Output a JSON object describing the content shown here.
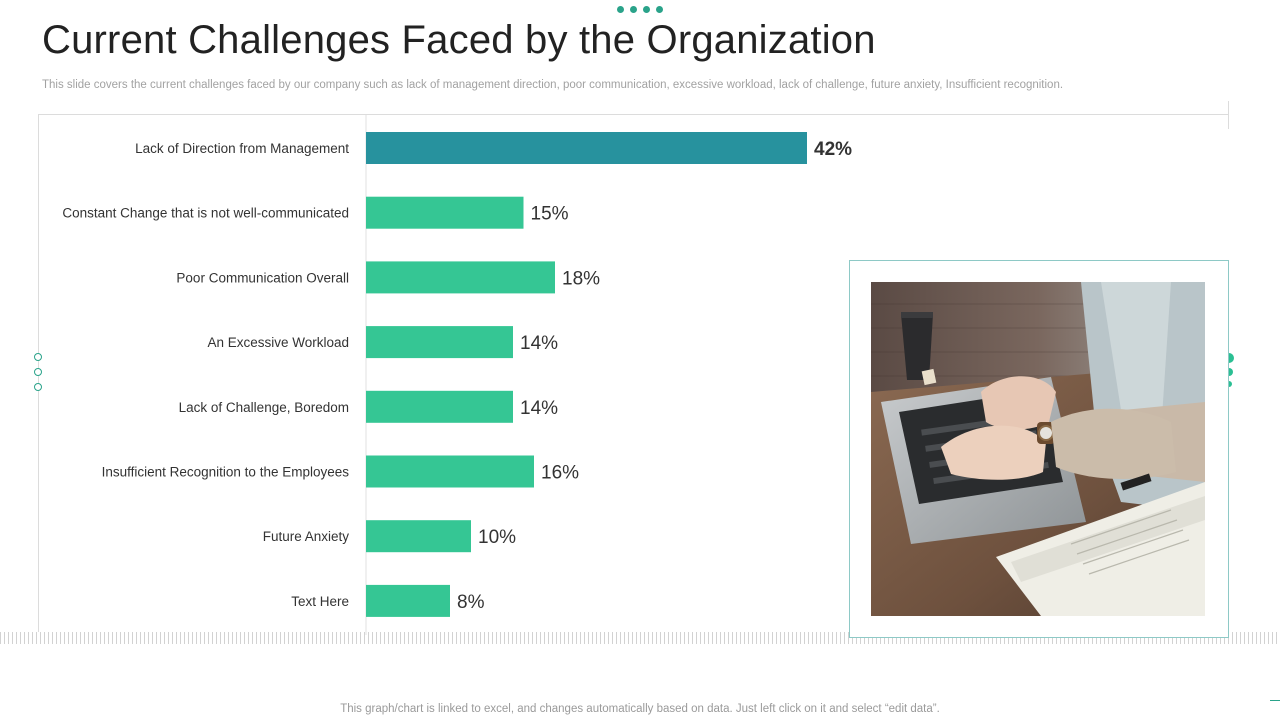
{
  "slide": {
    "title": "Current Challenges Faced by the Organization",
    "subtitle": "This slide covers the current challenges faced by our company such as lack of management direction, poor communication, excessive workload, lack of challenge, future anxiety, Insufficient recognition.",
    "footnote": "This graph/chart is linked to excel, and changes automatically based on data. Just left click on it and select “edit data”."
  },
  "colors": {
    "highlight_bar": "#27929e",
    "bar": "#35c694",
    "accent": "#2aa38a",
    "photo_border": "#8ec9c6"
  },
  "image": {
    "description_icon": "photo-laptop-typing"
  },
  "chart_data": {
    "type": "bar",
    "orientation": "horizontal",
    "categories": [
      "Lack of Direction from Management",
      "Constant Change that is not well-communicated",
      "Poor Communication Overall",
      "An Excessive Workload",
      "Lack of Challenge, Boredom",
      "Insufficient Recognition to the Employees",
      "Future Anxiety",
      "Text Here"
    ],
    "values": [
      42,
      15,
      18,
      14,
      14,
      16,
      10,
      8
    ],
    "data_labels": [
      "42%",
      "15%",
      "18%",
      "14%",
      "14%",
      "16%",
      "10%",
      "8%"
    ],
    "highlight_index": 0,
    "value_unit": "%",
    "xlim": [
      0,
      60
    ],
    "grid": false,
    "legend": "none"
  }
}
